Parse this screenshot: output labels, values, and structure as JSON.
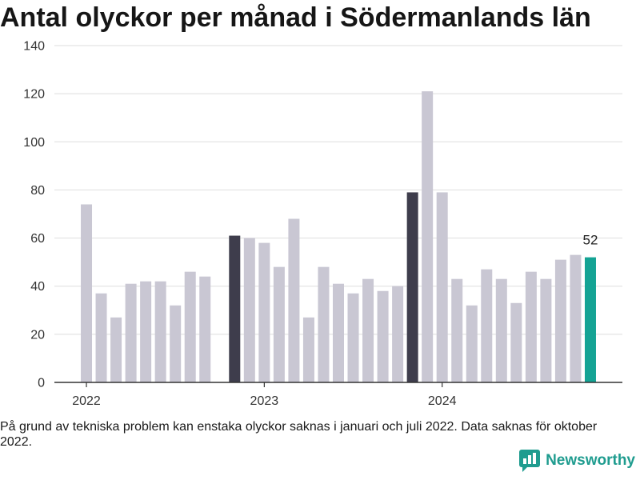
{
  "chart_data": {
    "type": "bar",
    "title": "Antal olyckor per månad i Södermanlands län",
    "categories": [
      "2022-01",
      "2022-02",
      "2022-03",
      "2022-04",
      "2022-05",
      "2022-06",
      "2022-07",
      "2022-08",
      "2022-09",
      "2022-10",
      "2022-11",
      "2022-12",
      "2023-01",
      "2023-02",
      "2023-03",
      "2023-04",
      "2023-05",
      "2023-06",
      "2023-07",
      "2023-08",
      "2023-09",
      "2023-10",
      "2023-11",
      "2023-12",
      "2024-01",
      "2024-02",
      "2024-03",
      "2024-04",
      "2024-05",
      "2024-06",
      "2024-07",
      "2024-08",
      "2024-09",
      "2024-10",
      "2024-11"
    ],
    "values": [
      74,
      37,
      27,
      41,
      42,
      42,
      32,
      46,
      44,
      null,
      61,
      60,
      58,
      48,
      68,
      27,
      48,
      41,
      37,
      43,
      38,
      40,
      79,
      121,
      79,
      43,
      32,
      47,
      43,
      33,
      46,
      43,
      51,
      53,
      52
    ],
    "ylim": [
      0,
      140
    ],
    "yticks": [
      0,
      20,
      40,
      60,
      80,
      100,
      120,
      140
    ],
    "xticks": [
      {
        "at": "2022-01",
        "label": "2022"
      },
      {
        "at": "2023-01",
        "label": "2023"
      },
      {
        "at": "2024-01",
        "label": "2024"
      }
    ],
    "grid": "horizontal",
    "legend": "none",
    "colors": {
      "default": "#c9c7d3",
      "highlight": "#3e3d4c",
      "latest": "#14a394"
    },
    "highlighted_categories": [
      "2022-11",
      "2023-11"
    ],
    "latest_category": "2024-11",
    "annotations": [
      {
        "category": "2024-11",
        "text": "52"
      }
    ]
  },
  "footer": {
    "note": "På grund av tekniska problem kan enstaka olyckor saknas i januari och juli 2022. Data saknas för oktober 2022.",
    "logo_text": "Newsworthy",
    "logo_icon": "newsworthy-logo-icon"
  }
}
